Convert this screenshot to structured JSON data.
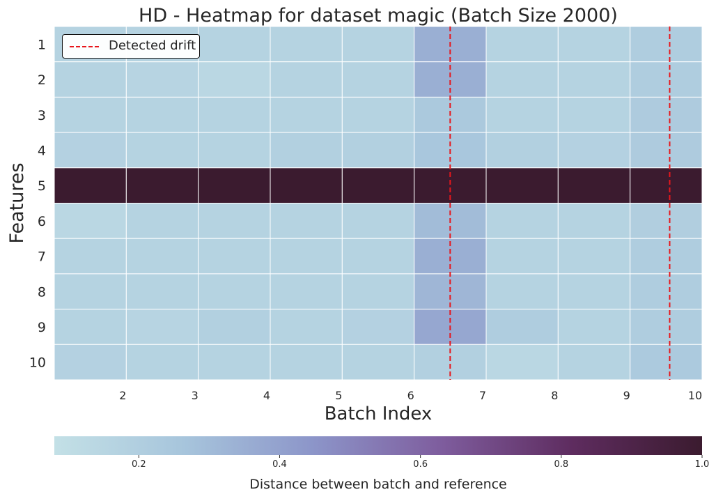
{
  "chart_data": {
    "type": "heatmap",
    "title": "HD - Heatmap for dataset magic (Batch Size 2000)",
    "xlabel": "Batch Index",
    "ylabel": "Features",
    "x_tick_labels": [
      "2",
      "3",
      "4",
      "5",
      "6",
      "7",
      "8",
      "9",
      "10"
    ],
    "y_categories": [
      "1",
      "2",
      "3",
      "4",
      "5",
      "6",
      "7",
      "8",
      "9",
      "10"
    ],
    "values": [
      [
        0.17,
        0.17,
        0.17,
        0.17,
        0.17,
        0.35,
        0.17,
        0.17,
        0.21
      ],
      [
        0.17,
        0.16,
        0.14,
        0.17,
        0.17,
        0.35,
        0.17,
        0.17,
        0.21
      ],
      [
        0.17,
        0.17,
        0.17,
        0.17,
        0.17,
        0.24,
        0.17,
        0.17,
        0.22
      ],
      [
        0.18,
        0.17,
        0.17,
        0.19,
        0.19,
        0.25,
        0.19,
        0.18,
        0.22
      ],
      [
        1.0,
        1.0,
        1.0,
        1.0,
        1.0,
        1.0,
        1.0,
        1.0,
        1.0
      ],
      [
        0.14,
        0.17,
        0.17,
        0.17,
        0.17,
        0.3,
        0.17,
        0.17,
        0.2
      ],
      [
        0.17,
        0.17,
        0.17,
        0.17,
        0.17,
        0.35,
        0.17,
        0.17,
        0.21
      ],
      [
        0.17,
        0.17,
        0.17,
        0.17,
        0.17,
        0.32,
        0.17,
        0.17,
        0.21
      ],
      [
        0.17,
        0.16,
        0.19,
        0.17,
        0.18,
        0.38,
        0.21,
        0.17,
        0.21
      ],
      [
        0.18,
        0.17,
        0.17,
        0.17,
        0.17,
        0.19,
        0.14,
        0.17,
        0.23
      ]
    ],
    "drift_lines_x": [
      6.5,
      9.55
    ],
    "legend": {
      "label": "Detected drift",
      "color": "#e8161b",
      "placement": "upper left"
    },
    "colorbar": {
      "label": "Distance between batch and reference",
      "ticks": [
        "0.2",
        "0.4",
        "0.6",
        "0.8",
        "1.0"
      ],
      "tick_values": [
        0.2,
        0.4,
        0.6,
        0.8,
        1.0
      ],
      "range": [
        0.08,
        1.0
      ],
      "orientation": "horizontal"
    },
    "colormap": [
      "#c3e0e6",
      "#a7c5dc",
      "#8c95c9",
      "#7e5c9d",
      "#5e2c5f",
      "#3b1b2f"
    ],
    "grid": true
  }
}
